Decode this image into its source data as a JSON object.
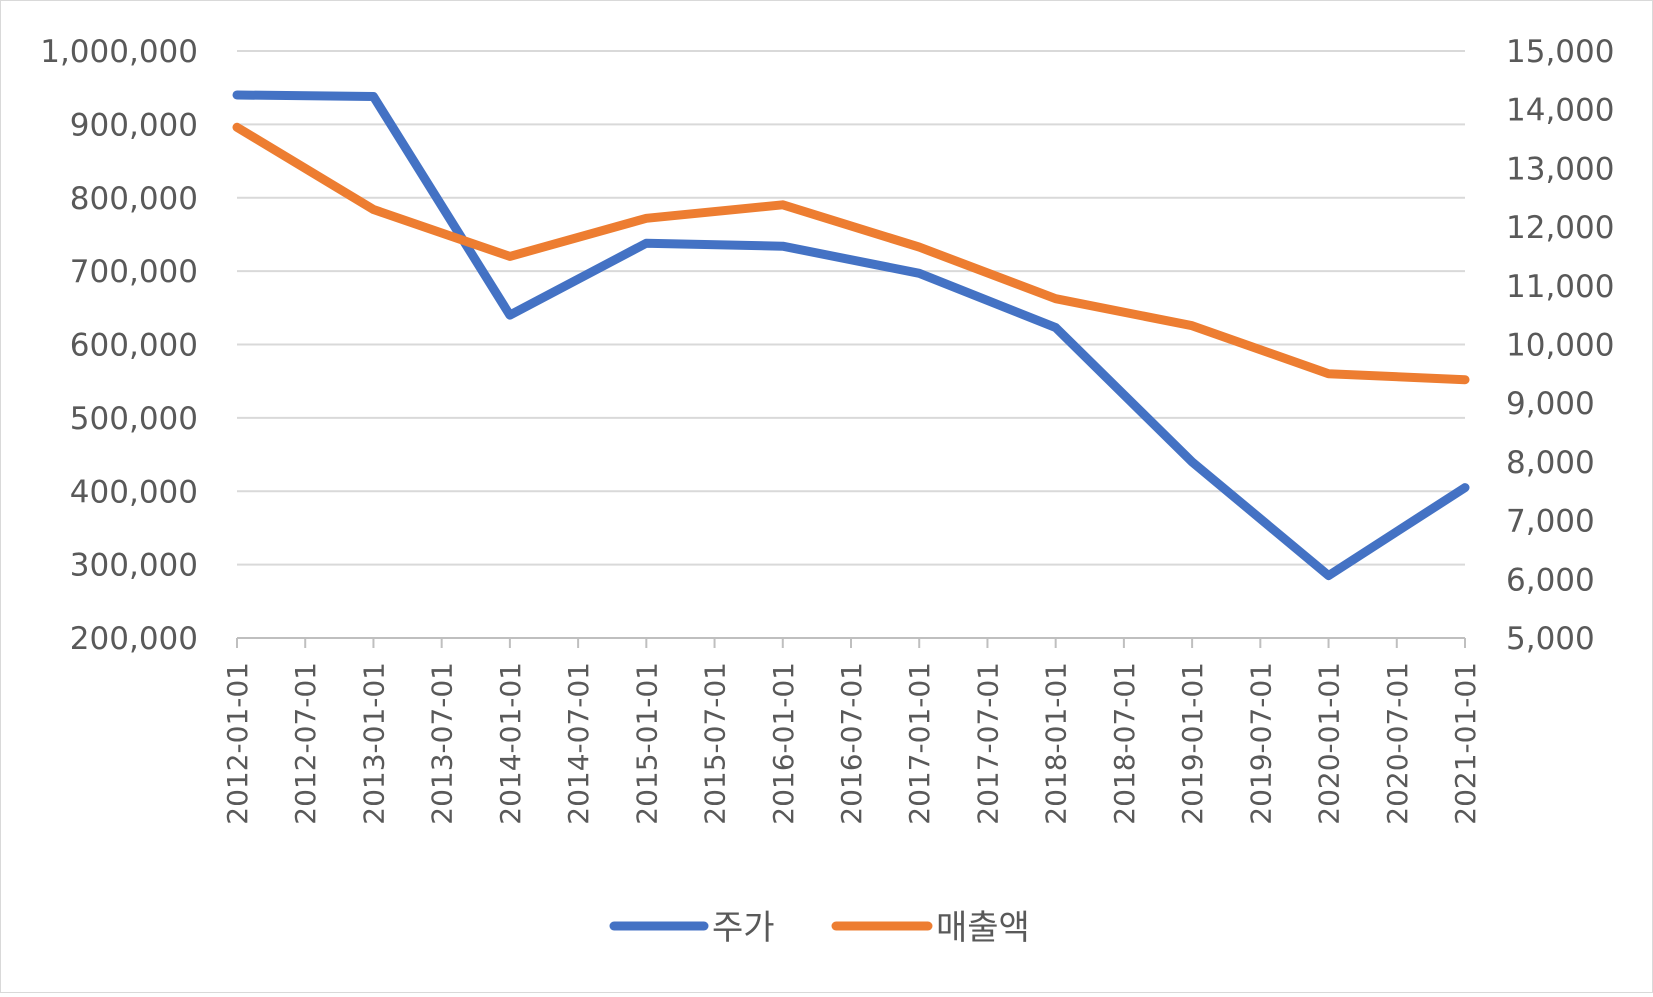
{
  "chart_data": {
    "type": "line",
    "title": "",
    "x": [
      "2012-01-01",
      "2013-01-01",
      "2014-01-01",
      "2015-01-01",
      "2016-01-01",
      "2017-01-01",
      "2018-01-01",
      "2019-01-01",
      "2020-01-01",
      "2021-01-01"
    ],
    "x_tick_labels": [
      "2012-01-01",
      "2012-07-01",
      "2013-01-01",
      "2013-07-01",
      "2014-01-01",
      "2014-07-01",
      "2015-01-01",
      "2015-07-01",
      "2016-01-01",
      "2016-07-01",
      "2017-01-01",
      "2017-07-01",
      "2018-01-01",
      "2018-07-01",
      "2019-01-01",
      "2019-07-01",
      "2020-01-01",
      "2020-07-01",
      "2021-01-01"
    ],
    "series": [
      {
        "name": "주가",
        "axis": "left",
        "color": "#4472C4",
        "values": [
          940000,
          938000,
          640000,
          738000,
          734000,
          697000,
          623000,
          440000,
          285000,
          405000
        ]
      },
      {
        "name": "매출액",
        "axis": "right",
        "color": "#ED7D31",
        "values": [
          13700,
          12300,
          11500,
          12150,
          12380,
          11660,
          10780,
          10320,
          9500,
          9400
        ]
      }
    ],
    "y_left": {
      "min": 200000,
      "max": 1000000,
      "step": 100000,
      "tick_labels": [
        "200,000",
        "300,000",
        "400,000",
        "500,000",
        "600,000",
        "700,000",
        "800,000",
        "900,000",
        "1,000,000"
      ]
    },
    "y_right": {
      "min": 5000,
      "max": 15000,
      "step": 1000,
      "tick_labels": [
        "5,000",
        "6,000",
        "7,000",
        "8,000",
        "9,000",
        "10,000",
        "11,000",
        "12,000",
        "13,000",
        "14,000",
        "15,000"
      ]
    },
    "grid": true,
    "legend_position": "bottom"
  }
}
